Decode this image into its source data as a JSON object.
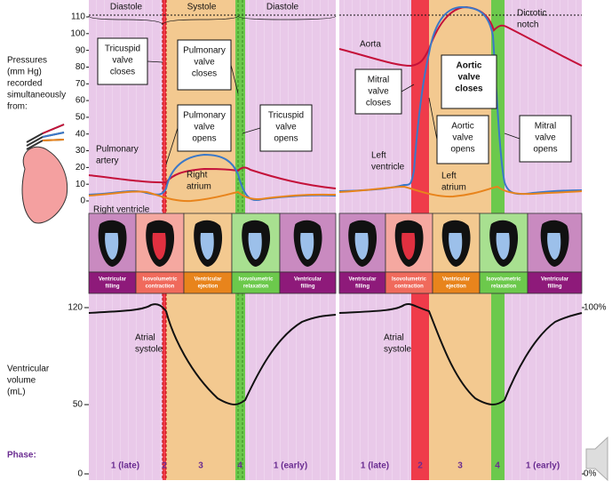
{
  "pressure_axis": {
    "label": [
      "Pressures",
      "(mm Hg)",
      "recorded",
      "simultaneously",
      "from:"
    ],
    "lim": [
      0,
      110
    ],
    "ticks": [
      0,
      10,
      20,
      30,
      40,
      50,
      60,
      70,
      80,
      90,
      100,
      110
    ]
  },
  "volume_axis": {
    "label": [
      "Ventricular",
      "volume",
      "(mL)"
    ],
    "lim": [
      0,
      120
    ],
    "ticks": [
      0,
      50,
      120
    ]
  },
  "percent_axis": {
    "lim": [
      0,
      100
    ],
    "ticks": [
      {
        "value": 0,
        "label": "0%"
      },
      {
        "value": 100,
        "label": "100%"
      }
    ]
  },
  "cycle_labels": [
    "Diastole",
    "Systole",
    "Diastole"
  ],
  "phase_label": "Phase:",
  "phases": [
    "1 (late)",
    "2",
    "3",
    "4",
    "1 (early)"
  ],
  "stages": [
    [
      "Ventricular",
      "filling"
    ],
    [
      "Isovolumetric",
      "contraction"
    ],
    [
      "Ventricular",
      "ejection"
    ],
    [
      "Isovolumetric",
      "relaxation"
    ],
    [
      "Ventricular",
      "filling"
    ]
  ],
  "valve_events": [
    [
      "Tricuspid",
      "valve",
      "closes"
    ],
    [
      "Pulmonary",
      "valve",
      "closes"
    ],
    [
      "Pulmonary",
      "valve",
      "opens"
    ],
    [
      "Tricuspid",
      "valve",
      "opens"
    ],
    [
      "Mitral",
      "valve",
      "closes"
    ],
    [
      "Aortic",
      "valve",
      "closes"
    ],
    [
      "Aortic",
      "valve",
      "opens"
    ],
    [
      "Mitral",
      "valve",
      "opens"
    ]
  ],
  "curve_labels": [
    [
      "Pulmonary",
      "artery"
    ],
    [
      "Right",
      "atrium"
    ],
    [
      "Right ventricle"
    ],
    [
      "Aorta"
    ],
    [
      "Dicrotic",
      "notch"
    ],
    [
      "Left",
      "ventricle"
    ],
    [
      "Left",
      "atrium"
    ],
    [
      "Atrial",
      "systole"
    ],
    [
      "Atrial",
      "systole"
    ]
  ]
}
